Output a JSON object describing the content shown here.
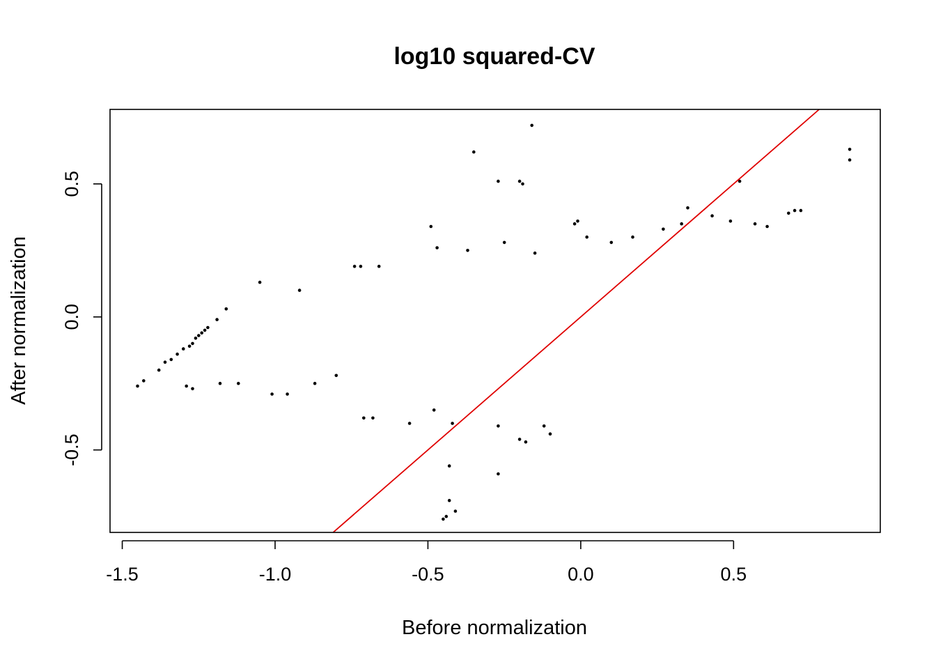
{
  "chart_data": {
    "type": "scatter",
    "title": "log10 squared-CV",
    "xlabel": "Before normalization",
    "ylabel": "After normalization",
    "xlim": [
      -1.54,
      0.98
    ],
    "ylim": [
      -0.81,
      0.78
    ],
    "xticks": [
      -1.5,
      -1.0,
      -0.5,
      0.0,
      0.5
    ],
    "xtick_labels": [
      "-1.5",
      "-1.0",
      "-0.5",
      "0.0",
      "0.5"
    ],
    "yticks": [
      -0.5,
      0.0,
      0.5
    ],
    "ytick_labels": [
      "-0.5",
      "0.0",
      "0.5"
    ],
    "grid": false,
    "legend": "none",
    "reference_line": {
      "intercept": 0.0,
      "slope": 1.0,
      "color": "#e00000"
    },
    "point_color": "#000000",
    "series": [
      {
        "values": [
          [
            -1.45,
            -0.26
          ],
          [
            -1.43,
            -0.24
          ],
          [
            -1.38,
            -0.2
          ],
          [
            -1.36,
            -0.17
          ],
          [
            -1.34,
            -0.16
          ],
          [
            -1.32,
            -0.14
          ],
          [
            -1.3,
            -0.12
          ],
          [
            -1.28,
            -0.11
          ],
          [
            -1.27,
            -0.1
          ],
          [
            -1.26,
            -0.08
          ],
          [
            -1.25,
            -0.07
          ],
          [
            -1.24,
            -0.06
          ],
          [
            -1.23,
            -0.05
          ],
          [
            -1.22,
            -0.04
          ],
          [
            -1.19,
            -0.01
          ],
          [
            -1.16,
            0.03
          ],
          [
            -1.27,
            -0.27
          ],
          [
            -1.29,
            -0.26
          ],
          [
            -1.18,
            -0.25
          ],
          [
            -1.05,
            0.13
          ],
          [
            -0.92,
            0.1
          ],
          [
            -0.74,
            0.19
          ],
          [
            -0.72,
            0.19
          ],
          [
            -0.66,
            0.19
          ],
          [
            -0.49,
            0.34
          ],
          [
            -0.47,
            0.26
          ],
          [
            -0.35,
            0.62
          ],
          [
            -0.27,
            0.51
          ],
          [
            -0.2,
            0.51
          ],
          [
            -0.19,
            0.5
          ],
          [
            -0.16,
            0.72
          ],
          [
            -0.02,
            0.35
          ],
          [
            -0.01,
            0.36
          ],
          [
            0.35,
            0.41
          ],
          [
            0.52,
            0.51
          ],
          [
            0.88,
            0.63
          ],
          [
            0.88,
            0.59
          ],
          [
            0.7,
            0.4
          ],
          [
            0.72,
            0.4
          ],
          [
            0.68,
            0.39
          ],
          [
            -0.43,
            -0.56
          ],
          [
            -0.43,
            -0.69
          ],
          [
            -0.45,
            -0.76
          ],
          [
            -0.44,
            -0.75
          ],
          [
            -0.41,
            -0.73
          ],
          [
            -0.27,
            -0.59
          ],
          [
            -0.27,
            -0.41
          ],
          [
            -0.18,
            -0.47
          ],
          [
            -0.2,
            -0.46
          ],
          [
            -0.1,
            -0.44
          ],
          [
            -0.12,
            -0.41
          ],
          [
            -0.42,
            -0.4
          ],
          [
            -0.48,
            -0.35
          ],
          [
            -0.56,
            -0.4
          ],
          [
            -0.68,
            -0.38
          ],
          [
            -0.71,
            -0.38
          ],
          [
            -1.01,
            -0.29
          ],
          [
            -0.96,
            -0.29
          ],
          [
            -0.87,
            -0.25
          ],
          [
            -1.12,
            -0.25
          ],
          [
            -0.8,
            -0.22
          ],
          [
            -0.37,
            0.25
          ],
          [
            -0.25,
            0.28
          ],
          [
            -0.15,
            0.24
          ],
          [
            0.02,
            0.3
          ],
          [
            0.1,
            0.28
          ],
          [
            0.17,
            0.3
          ],
          [
            0.27,
            0.33
          ],
          [
            0.33,
            0.35
          ],
          [
            0.43,
            0.38
          ],
          [
            0.49,
            0.36
          ],
          [
            0.57,
            0.35
          ],
          [
            0.61,
            0.34
          ]
        ]
      }
    ]
  }
}
